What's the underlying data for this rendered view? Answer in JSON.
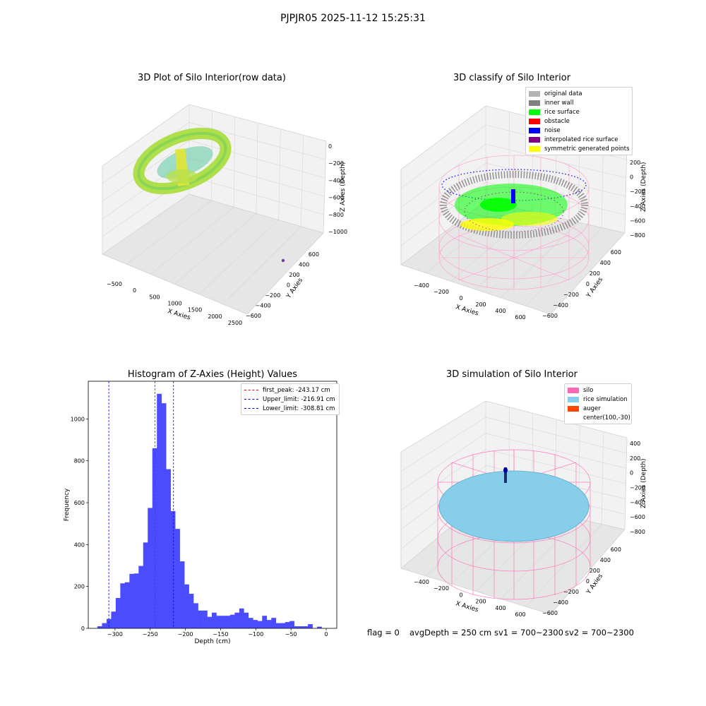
{
  "figure": {
    "suptitle": "PJPJR05 2025-11-12 15:25:31",
    "status": {
      "flag": "flag = 0",
      "avg_depth": "avgDepth = 250 cm",
      "sv1": "sv1 = 700~2300",
      "sv2": "sv2 = 700~2300"
    }
  },
  "colors": {
    "original_data": "#b3b3b3",
    "inner_wall": "#808080",
    "rice_surface": "#00ff00",
    "obstacle": "#ff0000",
    "noise": "#0000ff",
    "interpolated": "#800080",
    "symmetric": "#ffff00",
    "silo": "#ff69b4",
    "rice_sim": "#87ceeb",
    "auger": "#ff4500",
    "hist_bar": "#4c4cff",
    "first_peak_line": "#ff0000",
    "limit_line": "#0000ff"
  },
  "chart_data": [
    {
      "type": "scatter",
      "title": "3D Plot of Silo Interior(row data)",
      "xlabel": "X Axies",
      "ylabel": "Y Axies",
      "zlabel": "Z Axies (Depth)",
      "xticks": [
        "−500",
        "0",
        "500",
        "1000",
        "1500",
        "2000",
        "2500"
      ],
      "yticks": [
        "−600",
        "−400",
        "−200",
        "0",
        "200",
        "400",
        "600"
      ],
      "zticks": [
        "0",
        "−200",
        "−400",
        "−600",
        "−800",
        "−1000"
      ],
      "xlim": [
        -700,
        2500
      ],
      "ylim": [
        -700,
        700
      ],
      "zlim": [
        -1100,
        50
      ],
      "grid": true
    },
    {
      "type": "scatter",
      "title": "3D classify of Silo Interior",
      "xlabel": "X Axies",
      "ylabel": "Y Axies",
      "zlabel": "Z Axies (Depth)",
      "xticks": [
        "−400",
        "−200",
        "0",
        "200",
        "400",
        "600"
      ],
      "yticks": [
        "−600",
        "−400",
        "−200",
        "0",
        "200",
        "400",
        "600"
      ],
      "zticks": [
        "−800",
        "−600",
        "−400",
        "−200",
        "0",
        "200"
      ],
      "zticks_top_partial": "00",
      "grid": true,
      "legend": {
        "position": "top-right",
        "entries": [
          "original data",
          "inner wall",
          "rice surface",
          "obstacle",
          "noise",
          "interpolated rice surface",
          "symmetric generated points"
        ]
      }
    },
    {
      "type": "bar",
      "title": "Histogram of Z-Axies (Height) Values",
      "xlabel": "Depth (cm)",
      "ylabel": "Frequency",
      "xticks": [
        "−300",
        "−250",
        "−200",
        "−150",
        "−100",
        "−50",
        "0"
      ],
      "xtick_values": [
        -300,
        -250,
        -200,
        -150,
        -100,
        -50,
        0
      ],
      "yticks": [
        "0",
        "200",
        "400",
        "600",
        "800",
        "1000"
      ],
      "ytick_values": [
        0,
        200,
        400,
        600,
        800,
        1000
      ],
      "xlim": [
        -338,
        15
      ],
      "ylim": [
        0,
        1180
      ],
      "bin_start": -325,
      "bin_width": 6.5,
      "values": [
        10,
        25,
        45,
        80,
        145,
        215,
        220,
        260,
        262,
        298,
        410,
        575,
        860,
        1120,
        1075,
        760,
        560,
        475,
        320,
        210,
        165,
        120,
        85,
        85,
        55,
        75,
        60,
        60,
        60,
        65,
        75,
        95,
        75,
        50,
        40,
        35,
        60,
        40,
        50,
        25,
        25,
        30,
        35,
        10,
        10,
        10,
        20,
        0,
        8
      ],
      "lines": [
        {
          "label": "first_peak: -243.17 cm",
          "x": -243.17,
          "color": "#ff0000"
        },
        {
          "label": "Upper_limit: -216.91 cm",
          "x": -216.91,
          "color": "#0000ff"
        },
        {
          "label": "Lower_limit: -308.81 cm",
          "x": -308.81,
          "color": "#0000ff"
        }
      ],
      "legend": {
        "position": "top-right"
      }
    },
    {
      "type": "scatter",
      "title": "3D simulation of Silo Interior",
      "xlabel": "X Axies",
      "ylabel": "Y Axies",
      "zlabel": "Z Axies (Depth)",
      "xticks": [
        "−400",
        "−200",
        "0",
        "200",
        "400",
        "600"
      ],
      "yticks": [
        "−600",
        "−400",
        "−200",
        "0",
        "200",
        "400",
        "600"
      ],
      "zticks": [
        "−800",
        "−600",
        "−400",
        "−200",
        "0",
        "200",
        "400"
      ],
      "grid": true,
      "legend": {
        "position": "top-right",
        "entries": [
          "silo",
          "rice simulation",
          "auger",
          "center(100,-30)"
        ]
      }
    }
  ]
}
